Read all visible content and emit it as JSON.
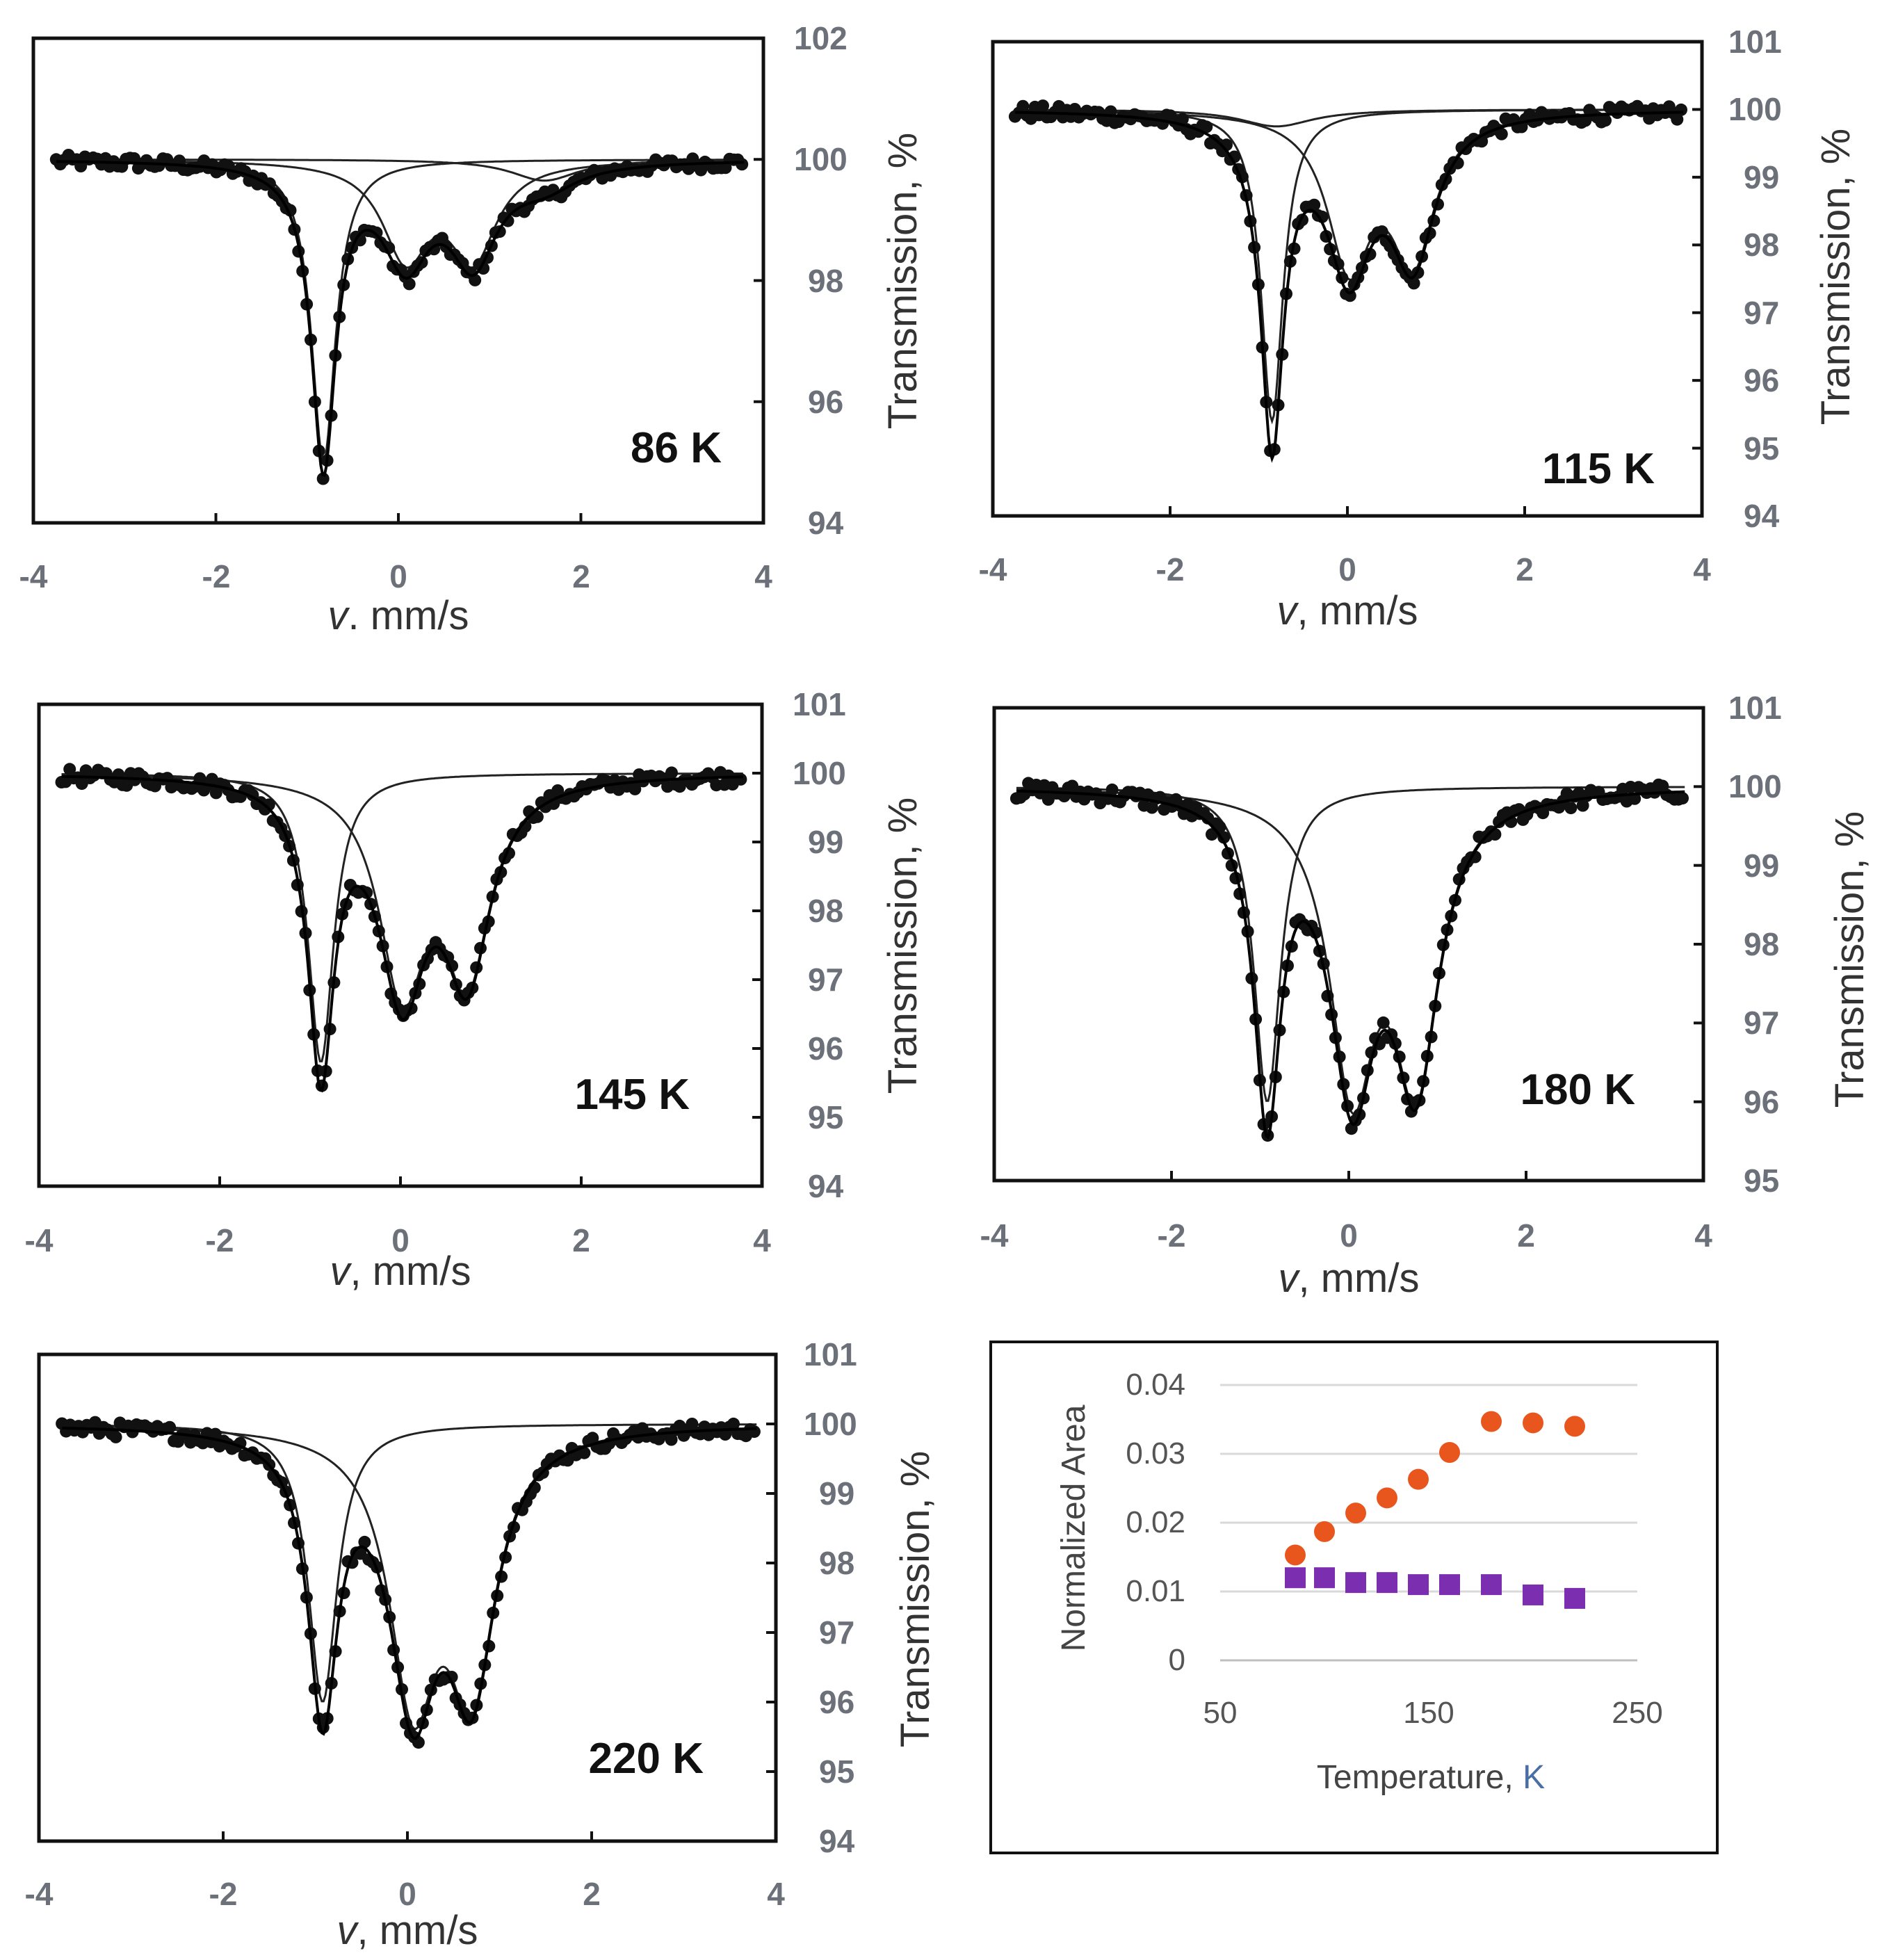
{
  "figure": {
    "panels": [
      {
        "id": "86K",
        "temperature_label": "86 K",
        "xlabel_italic": "v",
        "xlabel_rest": ". mm/s",
        "ylabel": "Transmission, %",
        "x_ticks": [
          "-4",
          "-2",
          "0",
          "2",
          "4"
        ],
        "y_ticks": [
          "94",
          "96",
          "98",
          "100",
          "102"
        ],
        "xlim": [
          -4,
          4
        ],
        "ylim": [
          94,
          102
        ],
        "baseline": 100,
        "components": [
          {
            "type": "singlet",
            "center": -0.82,
            "depth": 5.0,
            "width": 0.32
          },
          {
            "type": "doublet",
            "center": 0.45,
            "split": 0.74,
            "depth": 1.55,
            "width": 0.62,
            "ratio": 1.0
          },
          {
            "type": "singlet",
            "center": 1.6,
            "depth": 0.35,
            "width": 0.9
          }
        ]
      },
      {
        "id": "115K",
        "temperature_label": "115 K",
        "xlabel_italic": "v",
        "xlabel_rest": ", mm/s",
        "ylabel": "Transmission, %",
        "x_ticks": [
          "-4",
          "-2",
          "0",
          "2",
          "4"
        ],
        "y_ticks": [
          "94",
          "95",
          "96",
          "97",
          "98",
          "99",
          "100",
          "101"
        ],
        "xlim": [
          -4,
          4
        ],
        "ylim": [
          94,
          101
        ],
        "baseline": 100,
        "components": [
          {
            "type": "singlet",
            "center": -0.85,
            "depth": 4.6,
            "width": 0.3
          },
          {
            "type": "doublet",
            "center": 0.38,
            "split": 0.72,
            "depth": 2.2,
            "width": 0.6,
            "ratio": 0.95
          },
          {
            "type": "singlet",
            "center": -0.8,
            "depth": 0.25,
            "width": 1.0
          }
        ]
      },
      {
        "id": "145K",
        "temperature_label": "145 K",
        "xlabel_italic": "v",
        "xlabel_rest": ", mm/s",
        "ylabel": "Transmission, %",
        "x_ticks": [
          "-4",
          "-2",
          "0",
          "2",
          "4"
        ],
        "y_ticks": [
          "94",
          "95",
          "96",
          "97",
          "98",
          "99",
          "100",
          "101"
        ],
        "xlim": [
          -4,
          4
        ],
        "ylim": [
          94,
          101
        ],
        "baseline": 100,
        "components": [
          {
            "type": "singlet",
            "center": -0.88,
            "depth": 4.2,
            "width": 0.34
          },
          {
            "type": "doublet",
            "center": 0.38,
            "split": 0.72,
            "depth": 3.0,
            "width": 0.62,
            "ratio": 0.92
          }
        ]
      },
      {
        "id": "180K",
        "temperature_label": "180 K",
        "xlabel_italic": "v",
        "xlabel_rest": ", mm/s",
        "ylabel": "Transmission, %",
        "x_ticks": [
          "-4",
          "-2",
          "0",
          "2",
          "4"
        ],
        "y_ticks": [
          "95",
          "96",
          "97",
          "98",
          "99",
          "100",
          "101"
        ],
        "xlim": [
          -4,
          4
        ],
        "ylim": [
          95,
          101
        ],
        "baseline": 100,
        "components": [
          {
            "type": "singlet",
            "center": -0.92,
            "depth": 4.0,
            "width": 0.36
          },
          {
            "type": "doublet",
            "center": 0.4,
            "split": 0.72,
            "depth": 3.6,
            "width": 0.62,
            "ratio": 0.97
          }
        ]
      },
      {
        "id": "220K",
        "temperature_label": "220 K",
        "xlabel_italic": "v",
        "xlabel_rest": ", mm/s",
        "ylabel": "Transmission, %",
        "x_ticks": [
          "-4",
          "-2",
          "0",
          "2",
          "4"
        ],
        "y_ticks": [
          "94",
          "95",
          "96",
          "97",
          "98",
          "99",
          "100",
          "101"
        ],
        "xlim": [
          -4,
          4
        ],
        "ylim": [
          94,
          101
        ],
        "baseline": 100,
        "components": [
          {
            "type": "singlet",
            "center": -0.92,
            "depth": 4.0,
            "width": 0.38
          },
          {
            "type": "doublet",
            "center": 0.38,
            "split": 0.64,
            "depth": 3.7,
            "width": 0.62,
            "ratio": 0.95
          }
        ]
      }
    ],
    "inset": {
      "xlabel_main": "Temperature, ",
      "xlabel_unit": "K",
      "ylabel": "Normalized Area",
      "x_ticks": [
        "50",
        "150",
        "250"
      ],
      "y_ticks": [
        "0",
        "0.01",
        "0.02",
        "0.03",
        "0.04"
      ]
    }
  },
  "chart_data": [
    {
      "type": "scatter",
      "title": "86 K",
      "xlabel": "v. mm/s",
      "ylabel": "Transmission, %",
      "xlim": [
        -4,
        4
      ],
      "ylim": [
        94,
        102
      ],
      "series": [
        {
          "name": "fit components",
          "note": "singlet at -0.82 mm/s (min ~95.0%), doublet at 0.08 and 0.82 mm/s (~98.0-98.3%), broad weak component ~1.6 mm/s"
        },
        {
          "name": "experimental points",
          "min_transmission": 94.9,
          "min_velocity": -0.82
        }
      ]
    },
    {
      "type": "scatter",
      "title": "115 K",
      "xlabel": "v, mm/s",
      "ylabel": "Transmission, %",
      "xlim": [
        -4,
        4
      ],
      "ylim": [
        94,
        101
      ],
      "series": [
        {
          "name": "experimental points",
          "min_transmission": 95.3,
          "min_velocity": -0.85
        },
        {
          "name": "doublet",
          "minima": [
            [
              0.02,
              97.8
            ],
            [
              0.74,
              97.9
            ]
          ]
        }
      ]
    },
    {
      "type": "scatter",
      "title": "145 K",
      "xlabel": "v, mm/s",
      "ylabel": "Transmission, %",
      "xlim": [
        -4,
        4
      ],
      "ylim": [
        94,
        101
      ],
      "series": [
        {
          "name": "experimental points",
          "min_transmission": 95.3,
          "min_velocity": -0.88
        },
        {
          "name": "doublet",
          "minima": [
            [
              0.02,
              96.6
            ],
            [
              0.74,
              96.9
            ]
          ]
        }
      ]
    },
    {
      "type": "scatter",
      "title": "180 K",
      "xlabel": "v, mm/s",
      "ylabel": "Transmission, %",
      "xlim": [
        -4,
        4
      ],
      "ylim": [
        95,
        101
      ],
      "series": [
        {
          "name": "experimental points",
          "min_transmission": 95.8,
          "min_velocity": -0.92
        },
        {
          "name": "doublet",
          "minima": [
            [
              0.04,
              95.9
            ],
            [
              0.76,
              96.0
            ]
          ]
        }
      ]
    },
    {
      "type": "scatter",
      "title": "220 K",
      "xlabel": "v, mm/s",
      "ylabel": "Transmission, %",
      "xlim": [
        -4,
        4
      ],
      "ylim": [
        94,
        101
      ],
      "series": [
        {
          "name": "experimental points",
          "min_transmission": 95.9,
          "min_velocity": -0.92
        },
        {
          "name": "doublet",
          "minima": [
            [
              0.06,
              95.3
            ],
            [
              0.7,
              95.8
            ]
          ]
        }
      ]
    },
    {
      "type": "scatter",
      "title": "",
      "xlabel": "Temperature, K",
      "ylabel": "Normalized Area",
      "xlim": [
        50,
        250
      ],
      "ylim": [
        0,
        0.04
      ],
      "grid": true,
      "series": [
        {
          "name": "orange circles",
          "color": "#e8561e",
          "marker": "circle",
          "x": [
            86,
            100,
            115,
            130,
            145,
            160,
            180,
            200,
            220
          ],
          "y": [
            0.0153,
            0.0187,
            0.0214,
            0.0236,
            0.0263,
            0.0302,
            0.0347,
            0.0345,
            0.034
          ]
        },
        {
          "name": "purple squares",
          "color": "#7b2fb0",
          "marker": "square",
          "x": [
            86,
            100,
            115,
            130,
            145,
            160,
            180,
            200,
            220
          ],
          "y": [
            0.012,
            0.012,
            0.0113,
            0.0113,
            0.011,
            0.011,
            0.011,
            0.0095,
            0.009
          ]
        }
      ]
    }
  ]
}
